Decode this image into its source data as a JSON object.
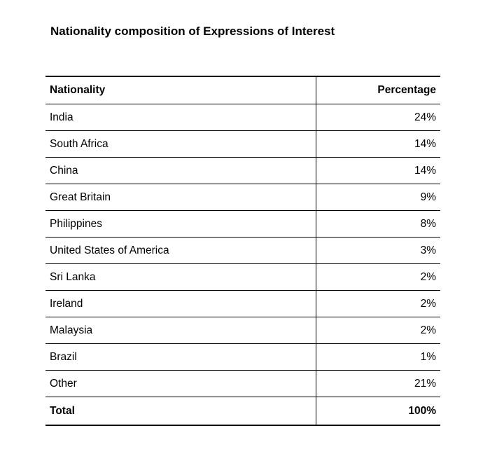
{
  "title": "Nationality composition of Expressions of Interest",
  "table": {
    "headers": {
      "nationality": "Nationality",
      "percentage": "Percentage"
    },
    "rows": [
      {
        "nationality": "India",
        "percentage": "24%"
      },
      {
        "nationality": "South Africa",
        "percentage": "14%"
      },
      {
        "nationality": "China",
        "percentage": "14%"
      },
      {
        "nationality": "Great Britain",
        "percentage": "9%"
      },
      {
        "nationality": "Philippines",
        "percentage": "8%"
      },
      {
        "nationality": "United States of America",
        "percentage": "3%"
      },
      {
        "nationality": "Sri Lanka",
        "percentage": "2%"
      },
      {
        "nationality": "Ireland",
        "percentage": "2%"
      },
      {
        "nationality": "Malaysia",
        "percentage": "2%"
      },
      {
        "nationality": "Brazil",
        "percentage": "1%"
      },
      {
        "nationality": "Other",
        "percentage": "21%"
      }
    ],
    "total": {
      "label": "Total",
      "percentage": "100%"
    }
  }
}
